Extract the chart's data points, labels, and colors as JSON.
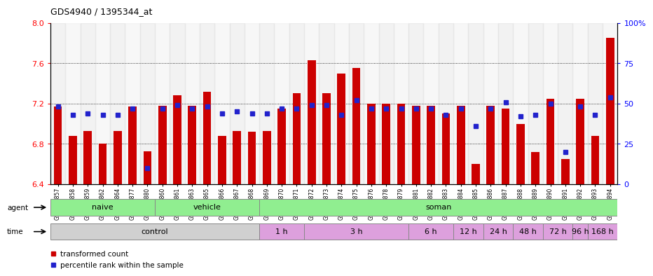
{
  "title": "GDS4940 / 1395344_at",
  "samples": [
    "GSM338857",
    "GSM338858",
    "GSM338859",
    "GSM338862",
    "GSM338864",
    "GSM338877",
    "GSM338880",
    "GSM338860",
    "GSM338861",
    "GSM338863",
    "GSM338865",
    "GSM338866",
    "GSM338867",
    "GSM338868",
    "GSM338869",
    "GSM338870",
    "GSM338871",
    "GSM338872",
    "GSM338873",
    "GSM338874",
    "GSM338875",
    "GSM338876",
    "GSM338878",
    "GSM338879",
    "GSM338881",
    "GSM338882",
    "GSM338883",
    "GSM338884",
    "GSM338885",
    "GSM338886",
    "GSM338887",
    "GSM338888",
    "GSM338889",
    "GSM338890",
    "GSM338891",
    "GSM338892",
    "GSM338893",
    "GSM338894"
  ],
  "bar_values": [
    7.17,
    6.88,
    6.93,
    6.8,
    6.93,
    7.17,
    6.73,
    7.18,
    7.28,
    7.18,
    7.32,
    6.88,
    6.93,
    6.92,
    6.93,
    7.15,
    7.3,
    7.63,
    7.3,
    7.5,
    7.55,
    7.2,
    7.2,
    7.2,
    7.18,
    7.18,
    7.1,
    7.18,
    6.6,
    7.18,
    7.15,
    7.0,
    6.72,
    7.25,
    6.65,
    7.25,
    6.88,
    7.85
  ],
  "percentile_values": [
    48,
    43,
    44,
    43,
    43,
    47,
    10,
    47,
    49,
    47,
    48,
    44,
    45,
    44,
    44,
    47,
    47,
    49,
    49,
    43,
    52,
    47,
    47,
    47,
    47,
    47,
    43,
    47,
    36,
    47,
    51,
    42,
    43,
    50,
    20,
    48,
    43,
    54
  ],
  "ylim_left": [
    6.4,
    8.0
  ],
  "ylim_right": [
    0,
    100
  ],
  "bar_color": "#cc0000",
  "dot_color": "#2222cc",
  "yticks_left": [
    6.4,
    6.8,
    7.2,
    7.6,
    8.0
  ],
  "yticks_right": [
    0,
    25,
    50,
    75,
    100
  ],
  "grid_values": [
    6.8,
    7.2,
    7.6
  ],
  "agent_groups": [
    {
      "label": "naive",
      "start": 0,
      "end": 7,
      "color": "#90ee90"
    },
    {
      "label": "vehicle",
      "start": 7,
      "end": 14,
      "color": "#90ee90"
    },
    {
      "label": "soman",
      "start": 14,
      "end": 38,
      "color": "#90ee90"
    }
  ],
  "time_groups": [
    {
      "label": "control",
      "start": 0,
      "end": 14,
      "color": "#d0d0d0"
    },
    {
      "label": "1 h",
      "start": 14,
      "end": 17,
      "color": "#dda0dd"
    },
    {
      "label": "3 h",
      "start": 17,
      "end": 24,
      "color": "#dda0dd"
    },
    {
      "label": "6 h",
      "start": 24,
      "end": 27,
      "color": "#dda0dd"
    },
    {
      "label": "12 h",
      "start": 27,
      "end": 29,
      "color": "#dda0dd"
    },
    {
      "label": "24 h",
      "start": 29,
      "end": 31,
      "color": "#dda0dd"
    },
    {
      "label": "48 h",
      "start": 31,
      "end": 33,
      "color": "#dda0dd"
    },
    {
      "label": "72 h",
      "start": 33,
      "end": 35,
      "color": "#dda0dd"
    },
    {
      "label": "96 h",
      "start": 35,
      "end": 36,
      "color": "#dda0dd"
    },
    {
      "label": "168 h",
      "start": 36,
      "end": 38,
      "color": "#dda0dd"
    }
  ],
  "legend_items": [
    {
      "label": "transformed count",
      "color": "#cc0000"
    },
    {
      "label": "percentile rank within the sample",
      "color": "#2222cc"
    }
  ]
}
